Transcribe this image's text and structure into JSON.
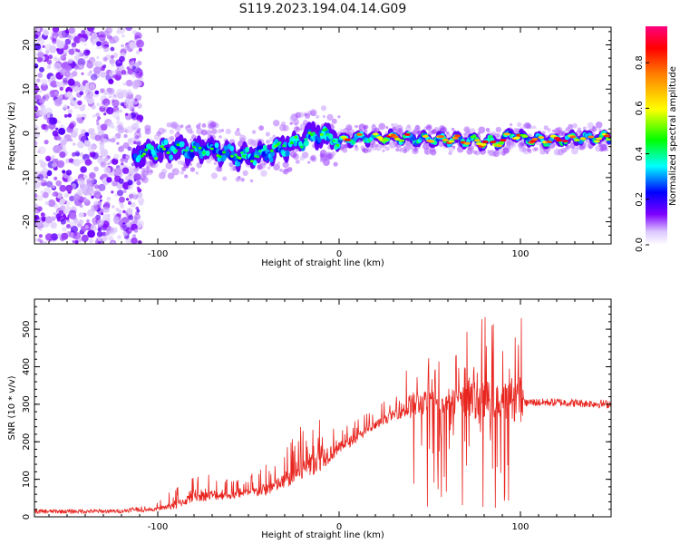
{
  "title": "S119.2023.194.04.14.G09",
  "chart_data": [
    {
      "type": "heatmap",
      "xlabel": "Height of straight line (km)",
      "ylabel": "Frequency (Hz)",
      "xlim": [
        -168,
        150
      ],
      "ylim": [
        -25,
        24
      ],
      "xticks": [
        -100,
        0,
        100
      ],
      "yticks": [
        -20,
        -10,
        0,
        10,
        20
      ],
      "colorbar": {
        "label": "Normalized spectral amplitude",
        "range": [
          0,
          0.96
        ],
        "ticks": [
          0.0,
          0.2,
          0.4,
          0.6,
          0.8
        ]
      },
      "ridge": {
        "x": [
          -113,
          -100,
          -90,
          -80,
          -70,
          -60,
          -50,
          -40,
          -30,
          -20,
          -10,
          0,
          10,
          20,
          30,
          40,
          50,
          60,
          70,
          80,
          90,
          95,
          100,
          110,
          120,
          130,
          140,
          150
        ],
        "freq": [
          -5,
          -4,
          -3.5,
          -4,
          -3.5,
          -5,
          -5,
          -4.5,
          -3,
          -1.5,
          0,
          -2,
          -1,
          -1,
          -1,
          -1.2,
          -1.3,
          -1.5,
          -1.5,
          -2,
          -2,
          0,
          -1,
          -1.5,
          -1.5,
          -1.2,
          -1,
          -1
        ]
      },
      "noise_region_x": [
        -168,
        -113
      ]
    },
    {
      "type": "line",
      "xlabel": "Height of straight line (km)",
      "ylabel": "SNR (10 * v/v)",
      "xlim": [
        -168,
        150
      ],
      "ylim": [
        0,
        580
      ],
      "xticks": [
        -100,
        0,
        100
      ],
      "yticks": [
        0,
        100,
        200,
        300,
        400,
        500
      ],
      "series": [
        {
          "color": "#e8251f",
          "envelope": {
            "x": [
              -168,
              -120,
              -100,
              -90,
              -80,
              -70,
              -60,
              -50,
              -40,
              -30,
              -20,
              -10,
              0,
              10,
              20,
              30,
              40,
              50,
              60,
              70,
              80,
              90,
              100,
              105,
              120,
              150
            ],
            "baseline": [
              8,
              10,
              20,
              30,
              50,
              55,
              55,
              60,
              70,
              90,
              120,
              150,
              180,
              210,
              240,
              270,
              290,
              300,
              300,
              300,
              300,
              300,
              300,
              305,
              305,
              300
            ],
            "peak": [
              20,
              20,
              40,
              80,
              110,
              120,
              100,
              110,
              150,
              180,
              250,
              300,
              250,
              270,
              300,
              320,
              450,
              430,
              420,
              500,
              540,
              500,
              580,
              320,
              320,
              315
            ]
          }
        }
      ]
    }
  ]
}
